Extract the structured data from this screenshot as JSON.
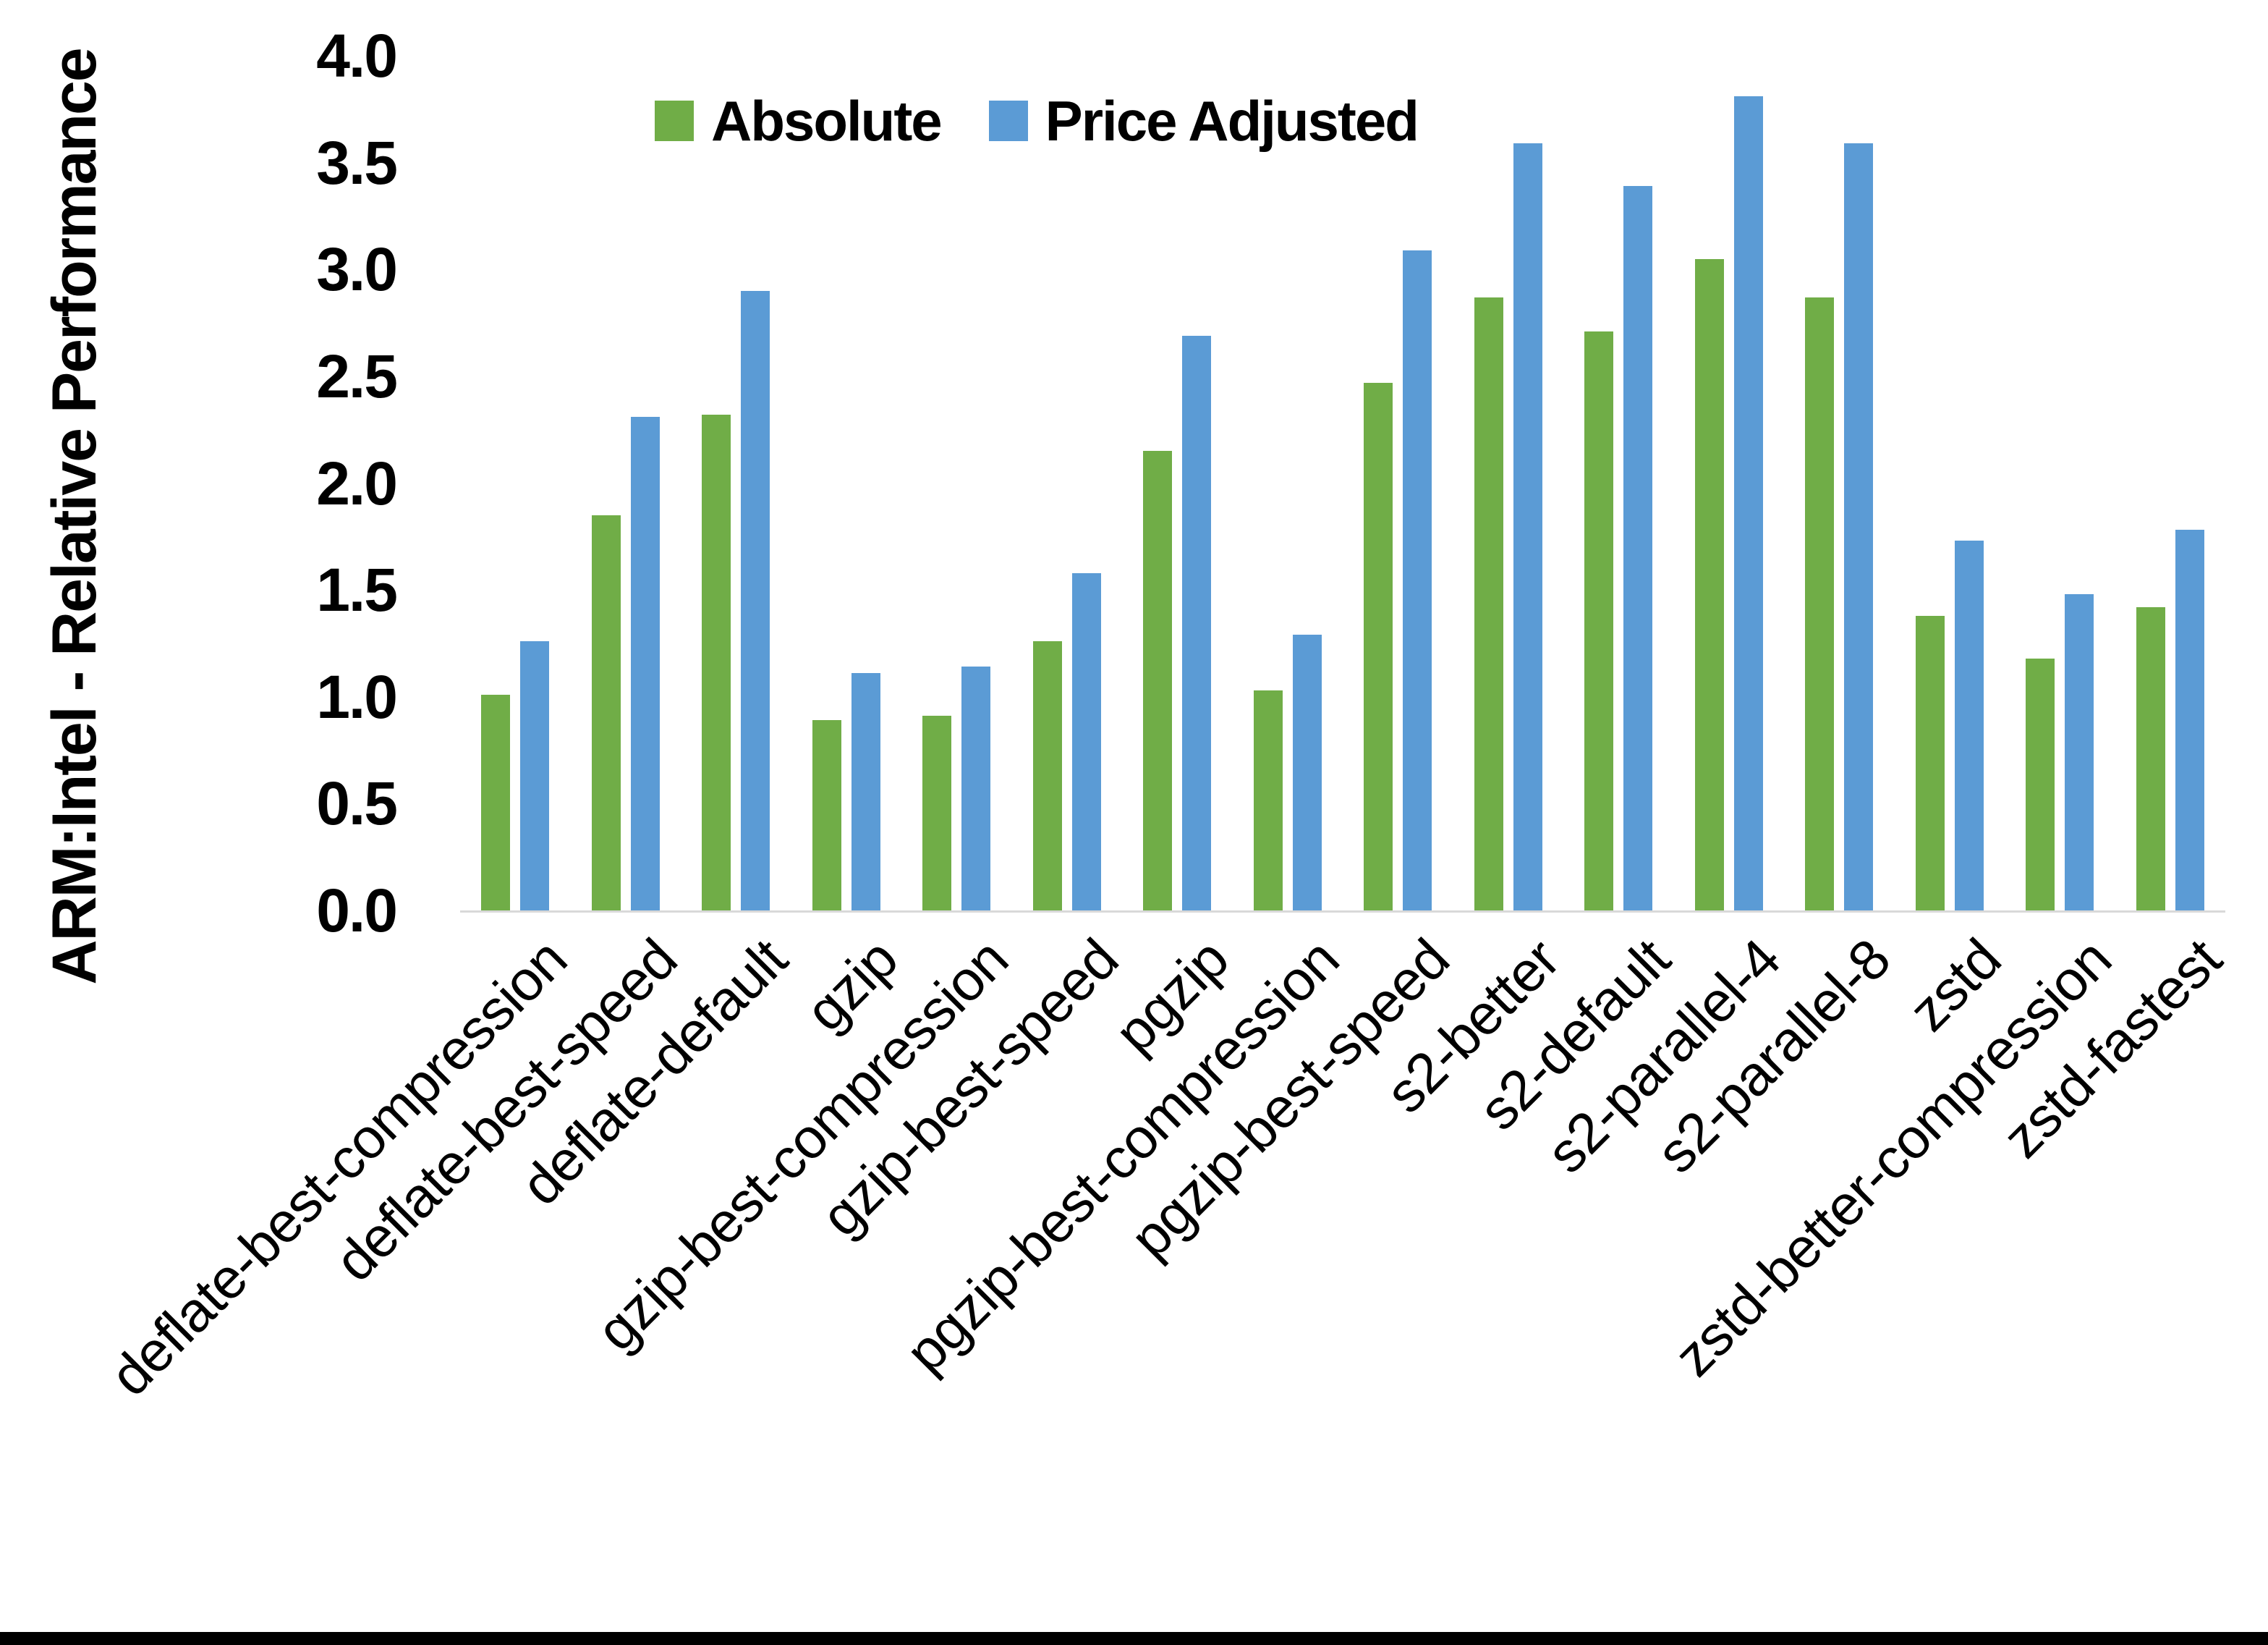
{
  "chart_data": {
    "type": "bar",
    "title": "",
    "y_axis_title": "ARM:Intel - Relative Performance",
    "categories": [
      "deflate-best-compression",
      "deflate-best-speed",
      "deflate-default",
      "gzip",
      "gzip-best-compression",
      "gzip-best-speed",
      "pgzip",
      "pgzip-best-compression",
      "pgzip-best-speed",
      "s2-better",
      "s2-default",
      "s2-parallel-4",
      "s2-parallel-8",
      "zstd",
      "zstd-better-compression",
      "zstd-fastest"
    ],
    "series": [
      {
        "name": "Absolute",
        "color": "#70AD47",
        "values": [
          1.01,
          1.85,
          2.32,
          0.89,
          0.91,
          1.26,
          2.15,
          1.03,
          2.47,
          2.87,
          2.71,
          3.05,
          2.87,
          1.38,
          1.18,
          1.42
        ]
      },
      {
        "name": "Price Adjusted",
        "color": "#5B9BD5",
        "values": [
          1.26,
          2.31,
          2.9,
          1.11,
          1.14,
          1.58,
          2.69,
          1.29,
          3.09,
          3.59,
          3.39,
          3.81,
          3.59,
          1.73,
          1.48,
          1.78
        ]
      }
    ],
    "ylim": [
      0,
      4
    ],
    "yticks": [
      "0.0",
      "0.5",
      "1.0",
      "1.5",
      "2.0",
      "2.5",
      "3.0",
      "3.5",
      "4.0"
    ],
    "grid": "off",
    "legend_position": "top-center"
  },
  "colors": {
    "background": "#FFFFFF",
    "axis_line": "#D9D9D9",
    "text": "#000000",
    "bottom_bar": "#000000"
  }
}
